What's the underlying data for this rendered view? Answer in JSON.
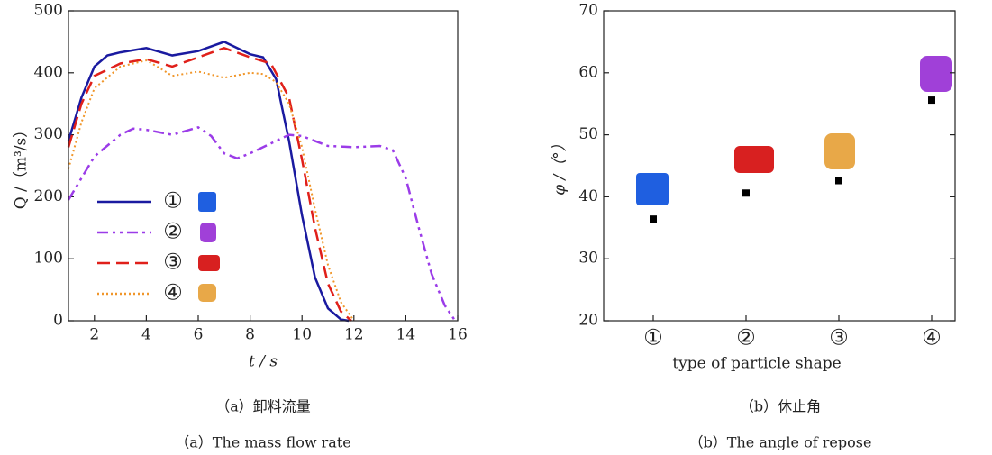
{
  "chart_data": [
    {
      "type": "line",
      "ylabel": "Q /（m³/s）",
      "xlabel": "t / s",
      "caption_cn": "（a）卸料流量",
      "caption_en": "（a）The mass flow rate",
      "xlim": [
        1,
        16
      ],
      "ylim": [
        0,
        500
      ],
      "xticks": [
        2,
        4,
        6,
        8,
        10,
        12,
        14,
        16
      ],
      "yticks": [
        0,
        100,
        200,
        300,
        400,
        500
      ],
      "series": [
        {
          "name": "①",
          "color": "#1a1aa0",
          "linestyle": "solid",
          "x": [
            1,
            1.5,
            2,
            2.5,
            3,
            4,
            5,
            6,
            7,
            8,
            8.5,
            9,
            9.5,
            10,
            10.5,
            11,
            11.5,
            11.8
          ],
          "values": [
            290,
            360,
            410,
            428,
            433,
            440,
            428,
            435,
            450,
            430,
            425,
            390,
            290,
            170,
            70,
            20,
            2,
            0
          ]
        },
        {
          "name": "②",
          "color": "#9b3ce8",
          "linestyle": "dashdot",
          "x": [
            1,
            2,
            3,
            3.5,
            4,
            5,
            6,
            6.5,
            7,
            7.5,
            8,
            9,
            9.5,
            10,
            11,
            12,
            13,
            13.5,
            14,
            14.5,
            15,
            15.5,
            15.9
          ],
          "values": [
            195,
            265,
            300,
            310,
            308,
            300,
            312,
            298,
            270,
            262,
            270,
            290,
            300,
            298,
            282,
            280,
            282,
            275,
            230,
            150,
            75,
            25,
            0
          ]
        },
        {
          "name": "③",
          "color": "#e0201a",
          "linestyle": "dashed",
          "x": [
            1,
            1.5,
            2,
            3,
            4,
            5,
            6,
            7,
            8,
            8.8,
            9.5,
            10,
            10.5,
            11,
            11.5,
            11.9
          ],
          "values": [
            280,
            350,
            395,
            415,
            422,
            410,
            425,
            440,
            425,
            415,
            360,
            260,
            150,
            60,
            15,
            0
          ]
        },
        {
          "name": "④",
          "color": "#f0962a",
          "linestyle": "dotted",
          "x": [
            1,
            1.5,
            2,
            3,
            4,
            4.5,
            5,
            6,
            7,
            8,
            8.5,
            9,
            9.5,
            10,
            10.5,
            11,
            11.5,
            12
          ],
          "values": [
            245,
            320,
            375,
            410,
            420,
            408,
            395,
            402,
            392,
            400,
            398,
            385,
            350,
            280,
            180,
            90,
            30,
            0
          ]
        }
      ]
    },
    {
      "type": "scatter",
      "ylabel": "φ /（°）",
      "xlabel": "type of particle shape",
      "caption_cn": "（b）休止角",
      "caption_en": "（b）The angle of repose",
      "categories": [
        "①",
        "②",
        "③",
        "④"
      ],
      "values": [
        36.4,
        40.6,
        42.6,
        55.6
      ],
      "color": "#000000",
      "ylim": [
        20,
        70
      ],
      "yticks": [
        20,
        30,
        40,
        50,
        60,
        70
      ]
    }
  ]
}
